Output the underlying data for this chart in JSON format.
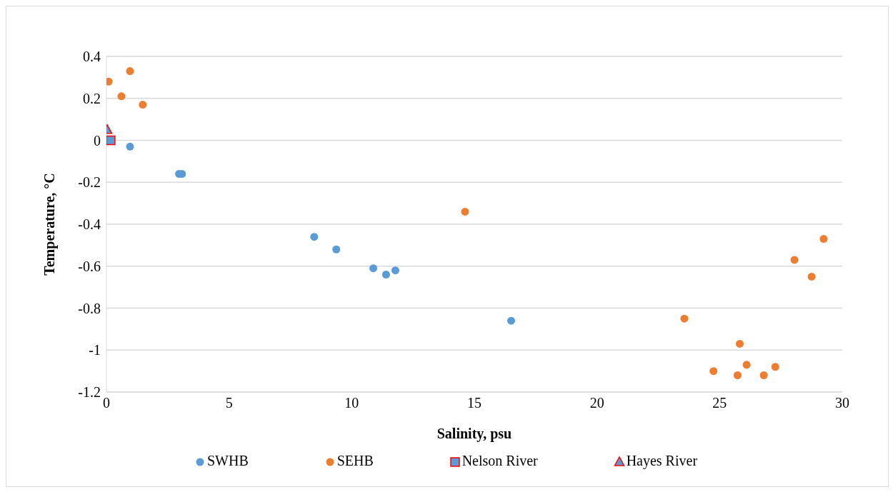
{
  "chart_data": {
    "type": "scatter",
    "xlabel": "Salinity, psu",
    "ylabel": "Temperature, °C",
    "xlim": [
      0,
      30
    ],
    "xticks": [
      0,
      5,
      10,
      15,
      20,
      25,
      30
    ],
    "ylim": [
      -1.2,
      0.4
    ],
    "yticks": [
      -1.2,
      -1,
      -0.8,
      -0.6,
      -0.4,
      -0.2,
      0,
      0.2,
      0.4
    ],
    "grid": "y",
    "legend": "bottom",
    "series": [
      {
        "name": "SWHB",
        "color": "#5b9bd5",
        "marker": "circle",
        "x": [
          0.96,
          2.96,
          3.08,
          8.47,
          9.37,
          10.88,
          11.4,
          11.78,
          16.5
        ],
        "values": [
          -0.03,
          -0.16,
          -0.16,
          -0.46,
          -0.52,
          -0.61,
          -0.64,
          -0.62,
          -0.86
        ]
      },
      {
        "name": "SEHB",
        "color": "#ed7d31",
        "marker": "circle",
        "x": [
          0.09,
          0.96,
          0.61,
          1.48,
          14.62,
          29.24,
          28.05,
          28.75,
          23.56,
          25.82,
          24.75,
          26.1,
          25.73,
          26.8,
          27.27
        ],
        "values": [
          0.28,
          0.33,
          0.21,
          0.17,
          -0.34,
          -0.47,
          -0.57,
          -0.65,
          -0.85,
          -0.97,
          -1.1,
          -1.07,
          -1.12,
          -1.12,
          -1.08
        ]
      },
      {
        "name": "Nelson River",
        "color": "#5b9bd5",
        "marker": "square",
        "x": [
          0.17
        ],
        "values": [
          0
        ]
      },
      {
        "name": "Hayes River",
        "color": "#5b9bd5",
        "marker": "triangle",
        "x": [
          0.03
        ],
        "values": [
          0.05
        ]
      }
    ]
  }
}
